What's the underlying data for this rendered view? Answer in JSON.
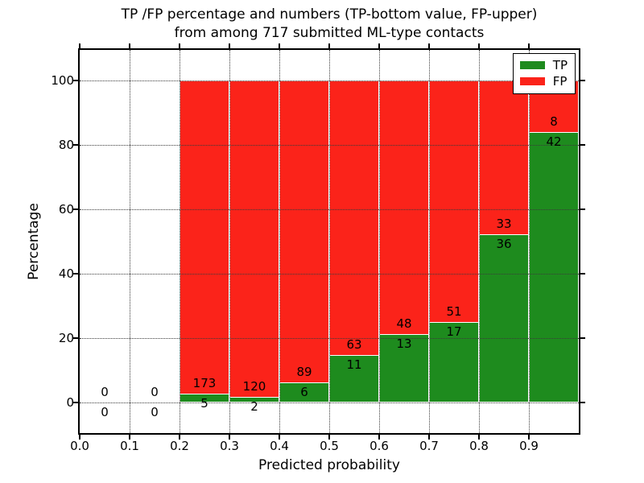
{
  "chart_data": {
    "type": "bar",
    "stacked": true,
    "title_line1": "TP /FP percentage and numbers (TP-bottom value, FP-upper)",
    "title_line2": "from among 717 submitted ML-type contacts",
    "xlabel": "Predicted probability",
    "ylabel": "Percentage",
    "total_contacts": 717,
    "xlim": [
      0.0,
      1.0
    ],
    "ylim": [
      -9.5,
      109.5
    ],
    "xtick_values": [
      0.0,
      0.1,
      0.2,
      0.3,
      0.4,
      0.5,
      0.6,
      0.7,
      0.8,
      0.9
    ],
    "xtick_labels": [
      "0.0",
      "0.1",
      "0.2",
      "0.3",
      "0.4",
      "0.5",
      "0.6",
      "0.7",
      "0.8",
      "0.9"
    ],
    "ytick_values": [
      0,
      20,
      40,
      60,
      80,
      100
    ],
    "ytick_labels": [
      "0",
      "20",
      "40",
      "60",
      "80",
      "100"
    ],
    "grid_style": "dotted",
    "colors": {
      "tp": "#1e8b1e",
      "fp": "#fb231a",
      "bar_edge": "#ffffff",
      "spine": "#000000",
      "text": "#000000",
      "background": "#ffffff"
    },
    "legend": {
      "position": "upper-right",
      "entries": [
        {
          "label": "TP",
          "series": "tp"
        },
        {
          "label": "FP",
          "series": "fp"
        }
      ]
    },
    "bins": [
      {
        "range": [
          0.0,
          0.1
        ],
        "tp": 0,
        "fp": 0,
        "tp_pct": null
      },
      {
        "range": [
          0.1,
          0.2
        ],
        "tp": 0,
        "fp": 0,
        "tp_pct": null
      },
      {
        "range": [
          0.2,
          0.3
        ],
        "tp": 5,
        "fp": 173,
        "tp_pct": 2.81
      },
      {
        "range": [
          0.3,
          0.4
        ],
        "tp": 2,
        "fp": 120,
        "tp_pct": 1.64
      },
      {
        "range": [
          0.4,
          0.5
        ],
        "tp": 6,
        "fp": 89,
        "tp_pct": 6.32
      },
      {
        "range": [
          0.5,
          0.6
        ],
        "tp": 11,
        "fp": 63,
        "tp_pct": 14.86
      },
      {
        "range": [
          0.6,
          0.7
        ],
        "tp": 13,
        "fp": 48,
        "tp_pct": 21.31
      },
      {
        "range": [
          0.7,
          0.8
        ],
        "tp": 17,
        "fp": 51,
        "tp_pct": 25.0
      },
      {
        "range": [
          0.8,
          0.9
        ],
        "tp": 36,
        "fp": 33,
        "tp_pct": 52.17
      },
      {
        "range": [
          0.9,
          1.0
        ],
        "tp": 42,
        "fp": 8,
        "tp_pct": 84.0
      }
    ]
  }
}
